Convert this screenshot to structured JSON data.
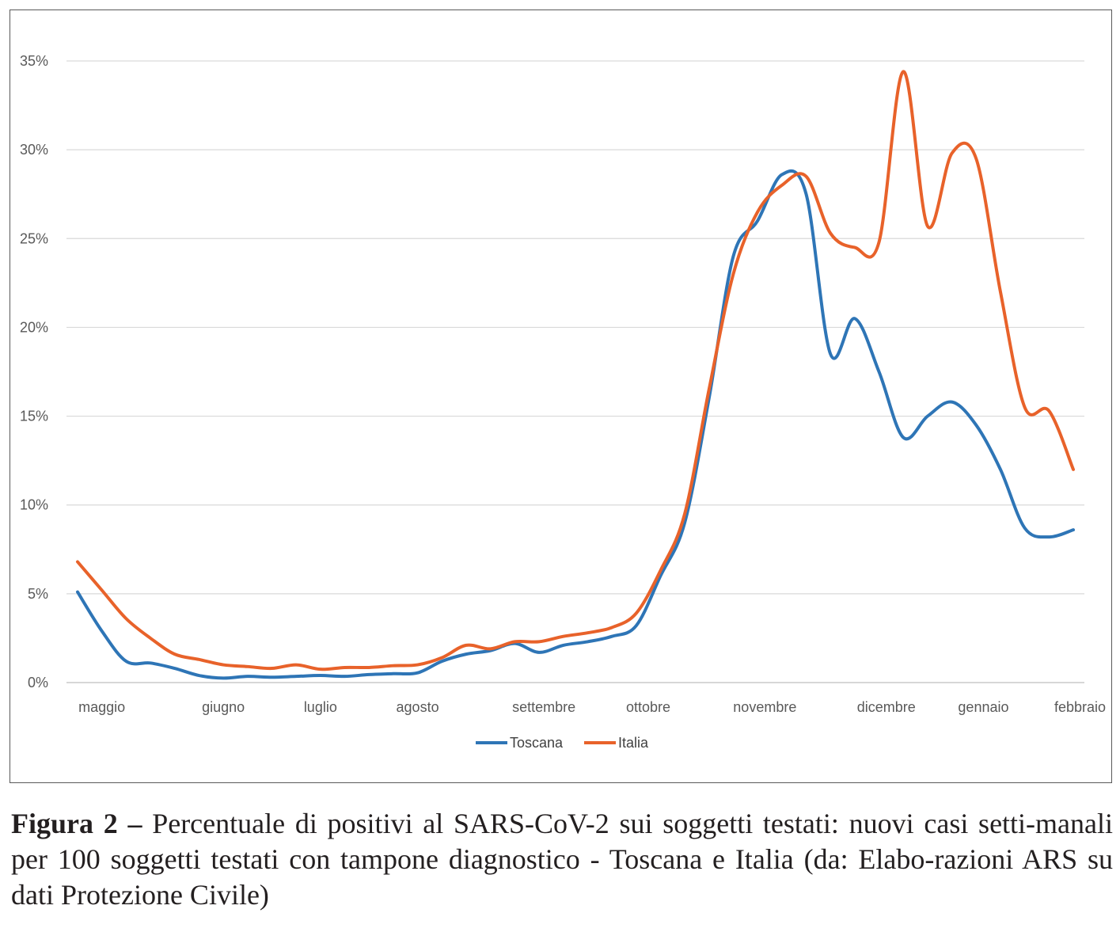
{
  "chart_data": {
    "type": "line",
    "title": "",
    "xlabel": "",
    "ylabel": "",
    "ylim": [
      0,
      35
    ],
    "y_ticks": [
      {
        "value": 0,
        "label": "0%"
      },
      {
        "value": 5,
        "label": "5%"
      },
      {
        "value": 10,
        "label": "10%"
      },
      {
        "value": 15,
        "label": "15%"
      },
      {
        "value": 20,
        "label": "20%"
      },
      {
        "value": 25,
        "label": "25%"
      },
      {
        "value": 30,
        "label": "30%"
      },
      {
        "value": 35,
        "label": "35%"
      }
    ],
    "x_range": [
      0,
      41
    ],
    "x_ticks": [
      {
        "value": 1,
        "label": "maggio"
      },
      {
        "value": 6,
        "label": "giugno"
      },
      {
        "value": 10,
        "label": "luglio"
      },
      {
        "value": 14,
        "label": "agosto"
      },
      {
        "value": 19.2,
        "label": "settembre"
      },
      {
        "value": 23.5,
        "label": "ottobre"
      },
      {
        "value": 28.3,
        "label": "novembre"
      },
      {
        "value": 33.3,
        "label": "dicembre"
      },
      {
        "value": 37.3,
        "label": "gennaio"
      },
      {
        "value": 42,
        "label": "febbraio"
      }
    ],
    "grid": true,
    "legend_position": "bottom-center",
    "series": [
      {
        "name": "Toscana",
        "color": "#2e75b6",
        "x": [
          0,
          1,
          2,
          3,
          4,
          5,
          6,
          7,
          8,
          9,
          10,
          11,
          12,
          13,
          14,
          15,
          16,
          17,
          18,
          19,
          20,
          21,
          22,
          23,
          24,
          25,
          26,
          27,
          28,
          29,
          30,
          31,
          32,
          33,
          34,
          35,
          36,
          37,
          38,
          39,
          40,
          41
        ],
        "y": [
          5.1,
          2.9,
          1.2,
          1.1,
          0.8,
          0.4,
          0.25,
          0.35,
          0.3,
          0.35,
          0.4,
          0.35,
          0.45,
          0.5,
          0.55,
          1.2,
          1.6,
          1.8,
          2.2,
          1.7,
          2.1,
          2.3,
          2.6,
          3.2,
          6.0,
          9.0,
          16.0,
          24.0,
          26.0,
          28.6,
          27.5,
          18.5,
          20.5,
          17.5,
          13.8,
          15.0,
          15.8,
          14.5,
          12.0,
          8.7,
          8.2,
          8.6
        ]
      },
      {
        "name": "Italia",
        "color": "#e8622a",
        "x": [
          0,
          1,
          2,
          3,
          4,
          5,
          6,
          7,
          8,
          9,
          10,
          11,
          12,
          13,
          14,
          15,
          16,
          17,
          18,
          19,
          20,
          21,
          22,
          23,
          24,
          25,
          26,
          27,
          28,
          29,
          30,
          31,
          32,
          33,
          34,
          35,
          36,
          37,
          38,
          39,
          40,
          41
        ],
        "y": [
          6.8,
          5.2,
          3.6,
          2.5,
          1.6,
          1.3,
          1.0,
          0.9,
          0.8,
          1.0,
          0.75,
          0.85,
          0.85,
          0.95,
          1.0,
          1.4,
          2.1,
          1.9,
          2.3,
          2.3,
          2.6,
          2.8,
          3.1,
          3.9,
          6.3,
          9.5,
          16.5,
          23.0,
          26.5,
          28.0,
          28.5,
          25.3,
          24.5,
          24.8,
          34.4,
          25.7,
          29.8,
          29.5,
          22.0,
          15.5,
          15.3,
          12.0
        ]
      }
    ]
  },
  "legend": {
    "items": [
      {
        "label": "Toscana",
        "color": "#2e75b6"
      },
      {
        "label": "Italia",
        "color": "#e8622a"
      }
    ]
  },
  "caption": {
    "label": "Figura 2 –",
    "text": "Percentuale di positivi al SARS-CoV-2 sui soggetti testati: nuovi casi setti-manali per 100 soggetti testati con tampone diagnostico - Toscana e Italia (da: Elabo-razioni ARS su dati Protezione Civile)"
  }
}
